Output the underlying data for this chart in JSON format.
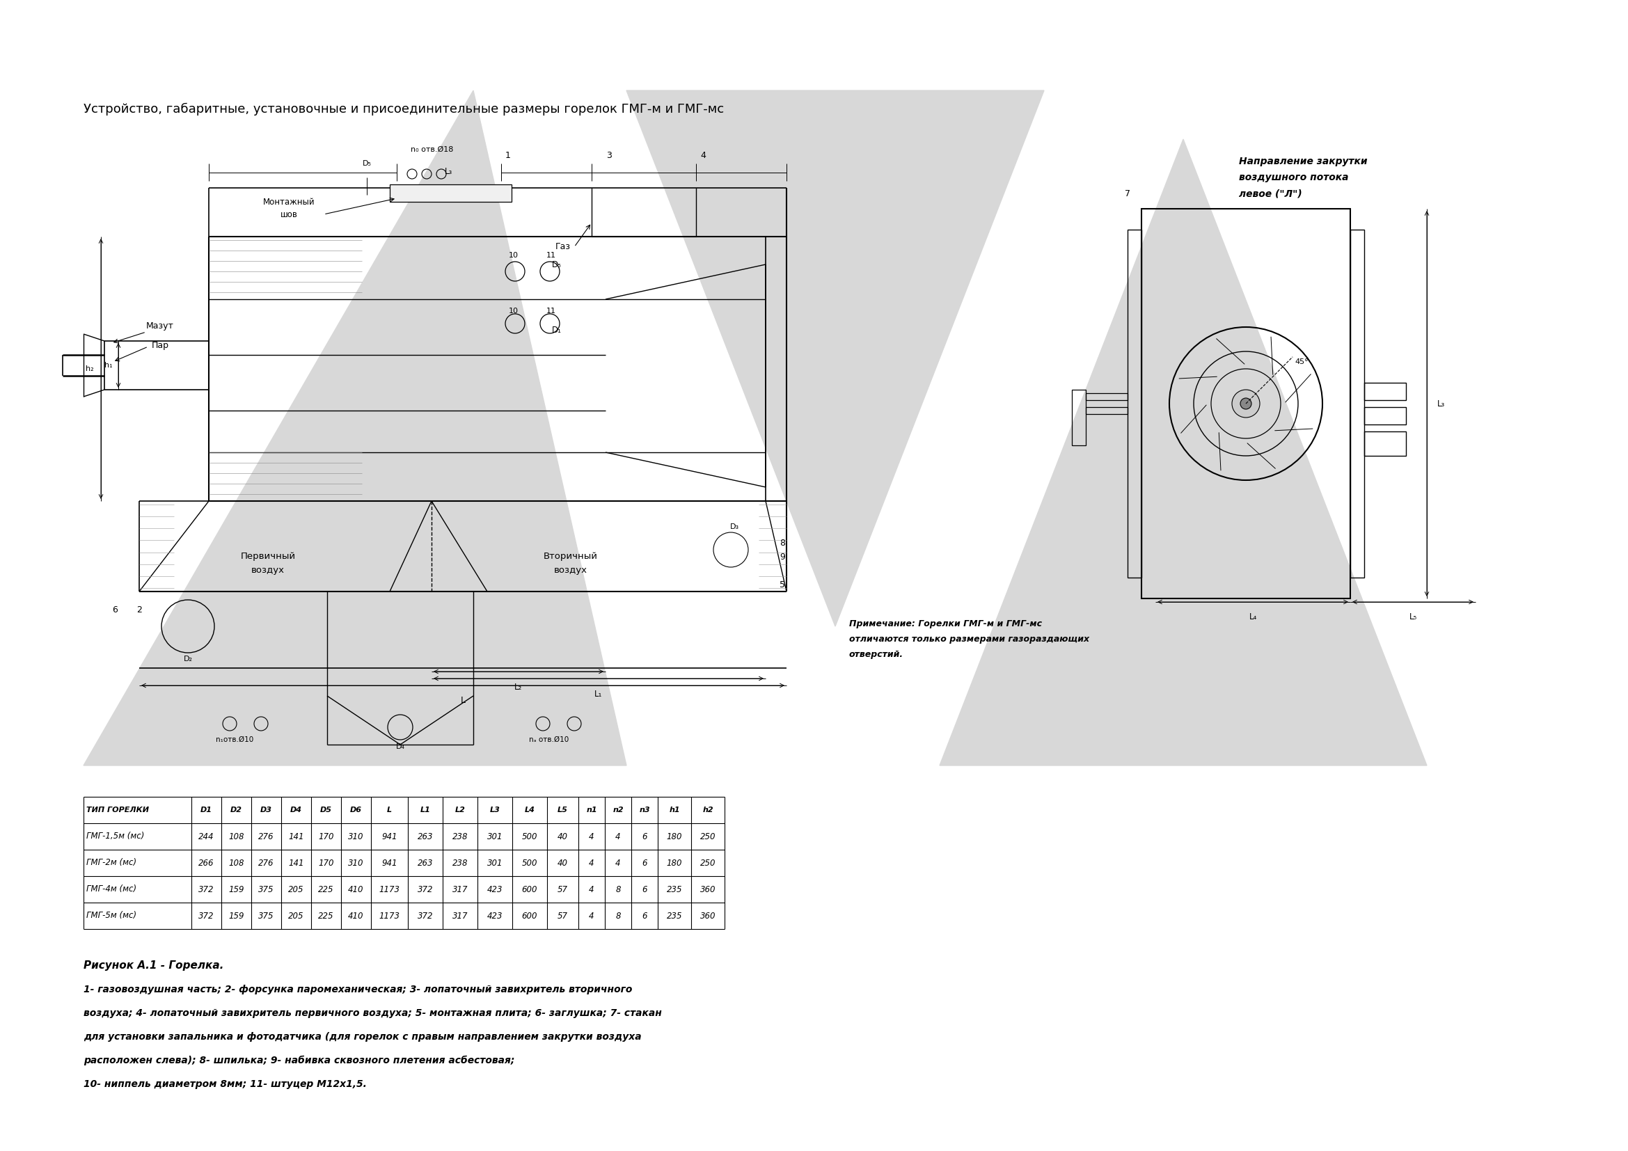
{
  "title": "Устройство, габаритные, установочные и присоединительные размеры горелок ГМГ-м и ГМГ-мс",
  "figure_label": "Рисунок А.1 - Горелка.",
  "description_lines": [
    "1- газовоздушная часть; 2- форсунка паромеханическая; 3- лопаточный завихритель вторичного",
    "воздуха; 4- лопаточный завихритель первичного воздуха; 5- монтажная плита; 6- заглушка; 7- стакан",
    "для установки запальника и фотодатчика (для горелок с правым направлением закрутки воздуха",
    "расположен слева); 8- шпилька; 9- набивка сквозного плетения асбестовая;",
    "10- ниппель диаметром 8мм; 11- штуцер М12х1,5."
  ],
  "note_lines": [
    "Примечание: Горелки ГМГ-м и ГМГ-мс",
    "отличаются только размерами газораздающих",
    "отверстий."
  ],
  "direction_label": [
    "Направление закрутки",
    "воздушного потока",
    "левое (\"Л\")"
  ],
  "table_header": [
    "ТИП ГОРЕЛКИ",
    "D1",
    "D2",
    "D3",
    "D4",
    "D5",
    "D6",
    "L",
    "L1",
    "L2",
    "L3",
    "L4",
    "L5",
    "n1",
    "n2",
    "n3",
    "h1",
    "h2"
  ],
  "table_rows": [
    [
      "ГМГ-1,5м (мс)",
      "244",
      "108",
      "276",
      "141",
      "170",
      "310",
      "941",
      "263",
      "238",
      "301",
      "500",
      "40",
      "4",
      "4",
      "6",
      "180",
      "250"
    ],
    [
      "ГМГ-2м (мс)",
      "266",
      "108",
      "276",
      "141",
      "170",
      "310",
      "941",
      "263",
      "238",
      "301",
      "500",
      "40",
      "4",
      "4",
      "6",
      "180",
      "250"
    ],
    [
      "ГМГ-4м (мс)",
      "372",
      "159",
      "375",
      "205",
      "225",
      "410",
      "1173",
      "372",
      "317",
      "423",
      "600",
      "57",
      "4",
      "8",
      "6",
      "235",
      "360"
    ],
    [
      "ГМГ-5м (мс)",
      "372",
      "159",
      "375",
      "205",
      "225",
      "410",
      "1173",
      "372",
      "317",
      "423",
      "600",
      "57",
      "4",
      "8",
      "6",
      "235",
      "360"
    ]
  ],
  "bg_color": "#ffffff",
  "text_color": "#000000",
  "line_color": "#000000",
  "wm_color": "#d8d8d8"
}
